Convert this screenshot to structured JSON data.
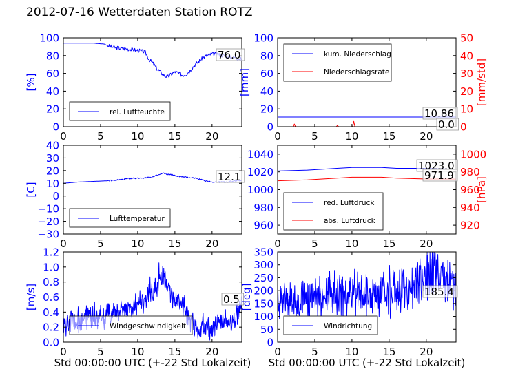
{
  "figure": {
    "title": "2012-07-16 Wetterdaten Station ROTZ"
  },
  "colors": {
    "blue": "#0000ff",
    "red": "#ff0000"
  },
  "chart_data": [
    {
      "id": "humidity",
      "type": "line",
      "xlim": [
        0,
        24
      ],
      "xticks": [
        0,
        5,
        10,
        15,
        20
      ],
      "ylim": [
        0,
        100
      ],
      "yticks": [
        0,
        20,
        40,
        60,
        80,
        100
      ],
      "ylabel": "[%]",
      "xlabel": "",
      "legend": [
        "rel. Luftfeuchte"
      ],
      "legend_loc": "lower-left",
      "series": [
        {
          "name": "rel. Luftfeuchte",
          "color": "blue",
          "x": [
            0,
            2,
            4,
            5.5,
            6,
            7,
            8,
            9,
            10,
            11,
            11.5,
            12,
            12.5,
            13,
            13.5,
            14,
            14.5,
            15,
            15.5,
            16,
            16.5,
            17,
            17.5,
            18,
            19,
            20,
            21,
            22,
            23,
            24
          ],
          "y": [
            94,
            94,
            94,
            93,
            91,
            89,
            88,
            87,
            86,
            84,
            76,
            72,
            66,
            62,
            58,
            56,
            59,
            62,
            60,
            58,
            59,
            63,
            68,
            72,
            79,
            82,
            81,
            79,
            78,
            76
          ]
        }
      ],
      "last_value": "76.0"
    },
    {
      "id": "rain",
      "type": "line",
      "xlim": [
        0,
        24
      ],
      "xticks": [
        0,
        5,
        10,
        15,
        20
      ],
      "ylim": [
        0,
        100
      ],
      "yticks": [
        0,
        20,
        40,
        60,
        80,
        100
      ],
      "ylim2": [
        0,
        50
      ],
      "yticks2": [
        0,
        10,
        20,
        30,
        40,
        50
      ],
      "ylabel": "[mm]",
      "ylabel2": "[mm/std]",
      "xlabel": "",
      "legend": [
        "kum. Niederschlag",
        "Niederschlagsrate"
      ],
      "legend_loc": "upper-left",
      "series": [
        {
          "name": "kum. Niederschlag",
          "color": "blue",
          "axis": "left",
          "x": [
            0,
            24
          ],
          "y": [
            10.86,
            10.86
          ]
        },
        {
          "name": "Niederschlagsrate",
          "color": "red",
          "axis": "right",
          "x": [
            0,
            2.1,
            2.25,
            2.4,
            7.9,
            8.05,
            8.2,
            10.1,
            10.25,
            10.4,
            24
          ],
          "y": [
            0,
            0,
            1.5,
            0,
            0,
            0.8,
            0,
            0,
            3,
            0,
            0
          ]
        }
      ],
      "last_values": [
        "10.86",
        "0.0"
      ]
    },
    {
      "id": "temperature",
      "type": "line",
      "xlim": [
        0,
        24
      ],
      "xticks": [
        0,
        5,
        10,
        15,
        20
      ],
      "ylim": [
        -30,
        40
      ],
      "yticks": [
        -30,
        -20,
        -10,
        0,
        10,
        20,
        30,
        40
      ],
      "ylabel": "[C]",
      "xlabel": "",
      "legend": [
        "Lufttemperatur"
      ],
      "legend_loc": "lower-left",
      "series": [
        {
          "name": "Lufttemperatur",
          "color": "blue",
          "x": [
            0,
            2,
            4,
            6,
            8,
            9,
            10,
            11,
            12,
            12.5,
            13,
            13.5,
            14,
            14.5,
            15,
            16,
            17,
            18,
            19,
            20,
            21,
            22,
            23,
            24
          ],
          "y": [
            10,
            11,
            11.5,
            12,
            13,
            14,
            14,
            14.5,
            15,
            16,
            17,
            18,
            17,
            17,
            16,
            15,
            14.5,
            14,
            12,
            11,
            11,
            11,
            12,
            12.1
          ]
        }
      ],
      "last_value": "12.1"
    },
    {
      "id": "pressure",
      "type": "line",
      "xlim": [
        0,
        24
      ],
      "xticks": [
        0,
        5,
        10,
        15,
        20
      ],
      "ylim": [
        950,
        1050
      ],
      "yticks": [
        960,
        980,
        1000,
        1020,
        1040
      ],
      "ylim2": [
        910,
        1010
      ],
      "yticks2": [
        920,
        940,
        960,
        980,
        1000
      ],
      "ylabel": "",
      "ylabel2": "[hPa]",
      "xlabel": "",
      "legend": [
        "red. Luftdruck",
        "abs. Luftdruck"
      ],
      "legend_loc": "lower-left",
      "series": [
        {
          "name": "red. Luftdruck",
          "color": "blue",
          "axis": "left",
          "x": [
            0,
            4,
            8,
            10,
            14,
            16,
            20,
            24
          ],
          "y": [
            1021,
            1022,
            1024,
            1025,
            1025,
            1024,
            1024,
            1023
          ]
        },
        {
          "name": "abs. Luftdruck",
          "color": "red",
          "axis": "right",
          "x": [
            0,
            4,
            8,
            10,
            14,
            16,
            20,
            24
          ],
          "y": [
            970,
            971,
            973,
            974,
            974,
            973,
            972,
            971.9
          ]
        }
      ],
      "last_values": [
        "1023.0",
        "971.9"
      ]
    },
    {
      "id": "windspeed",
      "type": "line",
      "xlim": [
        0,
        24
      ],
      "xticks": [
        0,
        5,
        10,
        15,
        20
      ],
      "ylim": [
        0,
        1.2
      ],
      "yticks": [
        0.0,
        0.2,
        0.4,
        0.6,
        0.8,
        1.0,
        1.2
      ],
      "ylabel": "[m/s]",
      "xlabel": "Std 00:00:00 UTC (+-22 Std Lokalzeit)",
      "legend": [
        "Windgeschwindigkeit"
      ],
      "legend_loc": "lower-left",
      "series": [
        {
          "name": "Windgeschwindigkeit",
          "color": "blue",
          "x": [
            0,
            2,
            4,
            6,
            8,
            9,
            10,
            11,
            11.5,
            12,
            13,
            13.5,
            14,
            15,
            16,
            17,
            18,
            19,
            20,
            21,
            22,
            23,
            24
          ],
          "y": [
            0.25,
            0.3,
            0.35,
            0.35,
            0.4,
            0.45,
            0.5,
            0.55,
            0.7,
            0.65,
            0.8,
            0.85,
            0.7,
            0.6,
            0.5,
            0.3,
            0.2,
            0.2,
            0.2,
            0.25,
            0.25,
            0.3,
            0.5
          ]
        }
      ],
      "noise": 0.2,
      "last_value": "0.5"
    },
    {
      "id": "winddir",
      "type": "line",
      "xlim": [
        0,
        24
      ],
      "xticks": [
        0,
        5,
        10,
        15,
        20
      ],
      "ylim": [
        0,
        350
      ],
      "yticks": [
        0,
        50,
        100,
        150,
        200,
        250,
        300,
        350
      ],
      "ylabel": "[deg]",
      "xlabel": "Std 00:00:00 UTC (+-22 Std Lokalzeit)",
      "legend": [
        "Windrichtung"
      ],
      "legend_loc": "lower-left",
      "series": [
        {
          "name": "Windrichtung",
          "color": "blue",
          "x": [
            0,
            2,
            4,
            6,
            8,
            10,
            12,
            14,
            16,
            17,
            18,
            19,
            20,
            21,
            22,
            23,
            24
          ],
          "y": [
            160,
            160,
            170,
            170,
            180,
            190,
            190,
            190,
            185,
            200,
            220,
            240,
            260,
            265,
            250,
            230,
            185
          ]
        }
      ],
      "noise": 110,
      "last_value": "185.4"
    }
  ]
}
